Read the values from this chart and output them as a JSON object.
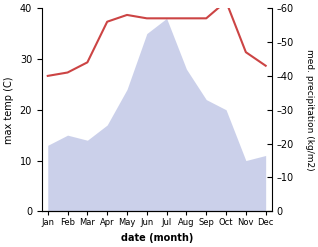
{
  "months": [
    "Jan",
    "Feb",
    "Mar",
    "Apr",
    "May",
    "Jun",
    "Jul",
    "Aug",
    "Sep",
    "Oct",
    "Nov",
    "Dec"
  ],
  "max_temp": [
    13,
    15,
    14,
    17,
    24,
    35,
    38,
    28,
    22,
    20,
    10,
    11
  ],
  "med_precip": [
    40,
    41,
    44,
    56,
    58,
    57,
    57,
    57,
    57,
    62,
    47,
    43
  ],
  "temp_line_color": "#cc4444",
  "fill_color": "#b0b8e0",
  "fill_alpha": 0.65,
  "ylabel_left": "max temp (C)",
  "ylabel_right": "med. precipitation (kg/m2)",
  "xlabel": "date (month)",
  "ylim_left": [
    0,
    40
  ],
  "ylim_right": [
    0,
    60
  ],
  "yticks_left": [
    0,
    10,
    20,
    30,
    40
  ],
  "yticks_right": [
    0,
    10,
    20,
    30,
    40,
    50,
    60
  ],
  "background_color": "#ffffff"
}
